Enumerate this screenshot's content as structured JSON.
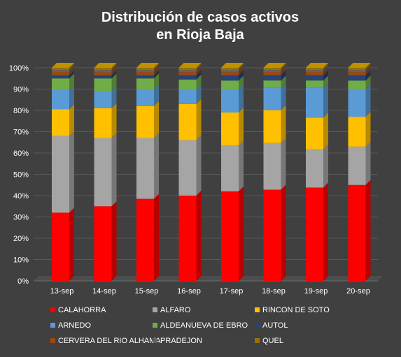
{
  "chart_data": {
    "type": "bar",
    "stacked": true,
    "percent": true,
    "title_lines": [
      "Distribución de casos activos",
      "en Rioja Baja"
    ],
    "categories": [
      "13-sep",
      "14-sep",
      "15-sep",
      "16-sep",
      "17-sep",
      "18-sep",
      "19-sep",
      "20-sep"
    ],
    "yticks": [
      "0%",
      "10%",
      "20%",
      "30%",
      "40%",
      "50%",
      "60%",
      "70%",
      "80%",
      "90%",
      "100%"
    ],
    "ylim": [
      0,
      100
    ],
    "grid": true,
    "legend_position": "bottom",
    "series": [
      {
        "name": "CALAHORRA",
        "color": "#ff0000",
        "values": [
          32,
          35,
          38.5,
          40,
          42,
          43,
          44,
          45
        ]
      },
      {
        "name": "ALFARO",
        "color": "#a5a5a5",
        "values": [
          36,
          32,
          28.5,
          26,
          21.5,
          22,
          18,
          18
        ]
      },
      {
        "name": "RINCON DE SOTO",
        "color": "#ffc000",
        "values": [
          12.5,
          14,
          15,
          17,
          15.5,
          15.5,
          15,
          14
        ]
      },
      {
        "name": "ARNEDO",
        "color": "#5b9bd5",
        "values": [
          9,
          8,
          7.5,
          6.5,
          11,
          10.5,
          14,
          13
        ]
      },
      {
        "name": "ALDEANUEVA DE EBRO",
        "color": "#70ad47",
        "values": [
          5.5,
          6,
          5.5,
          5,
          4,
          3.5,
          3.5,
          4
        ]
      },
      {
        "name": "AUTOL",
        "color": "#264478",
        "values": [
          1.5,
          1.5,
          1.5,
          2,
          2.5,
          2.5,
          2.5,
          2.5
        ]
      },
      {
        "name": "CERVERA DEL RIO ALHAMA",
        "color": "#9e480e",
        "values": [
          1.5,
          1.5,
          1.5,
          1.5,
          1.5,
          1.5,
          1.5,
          1.5
        ]
      },
      {
        "name": "PRADEJON",
        "color": "#636363",
        "values": [
          1,
          1,
          1,
          1,
          1,
          1,
          1,
          1
        ]
      },
      {
        "name": "QUEL",
        "color": "#997300",
        "values": [
          1,
          1,
          1,
          1,
          1,
          1,
          1,
          1
        ]
      }
    ]
  }
}
